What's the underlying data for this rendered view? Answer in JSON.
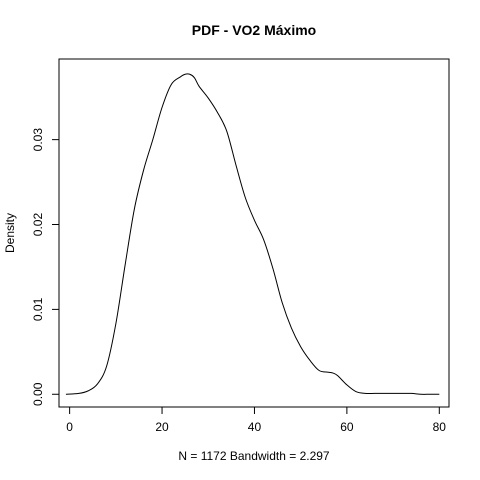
{
  "chart_data": {
    "type": "line",
    "title": "PDF - VO2 Máximo",
    "xlabel": "N = 1172   Bandwidth = 2.297",
    "ylabel": "Density",
    "xlim": [
      -2.3,
      82.1
    ],
    "ylim": [
      -0.0015,
      0.0395
    ],
    "x_ticks": [
      0,
      20,
      40,
      60,
      80
    ],
    "x_tick_labels": [
      "0",
      "20",
      "40",
      "60",
      "80"
    ],
    "y_ticks": [
      0.0,
      0.01,
      0.02,
      0.03
    ],
    "y_tick_labels": [
      "0.00",
      "0.01",
      "0.02",
      "0.03"
    ],
    "grid": false,
    "legend": "none",
    "color": "#000000",
    "series": [
      {
        "x": [
          -0.8,
          2,
          4,
          6,
          8,
          10,
          12,
          14,
          16,
          18,
          20,
          22,
          24,
          25,
          26,
          27,
          28,
          30,
          32,
          34,
          36,
          38,
          40,
          42,
          44,
          46,
          48,
          50,
          52,
          54,
          56,
          57,
          58,
          60,
          62,
          64,
          66,
          68,
          70,
          72,
          74,
          76,
          78,
          80
        ],
        "y": [
          0.0,
          0.0001,
          0.0004,
          0.0012,
          0.0033,
          0.0083,
          0.0152,
          0.0218,
          0.0264,
          0.03,
          0.0338,
          0.0365,
          0.0374,
          0.0377,
          0.0377,
          0.0373,
          0.0363,
          0.0349,
          0.0332,
          0.031,
          0.027,
          0.0232,
          0.0205,
          0.0182,
          0.0148,
          0.0108,
          0.0078,
          0.0056,
          0.004,
          0.0028,
          0.0026,
          0.0025,
          0.0022,
          0.0011,
          0.0003,
          0.0001,
          0.0001,
          0.0001,
          0.0001,
          0.0001,
          0.0001,
          0.0,
          0.0,
          0.0
        ]
      }
    ]
  }
}
